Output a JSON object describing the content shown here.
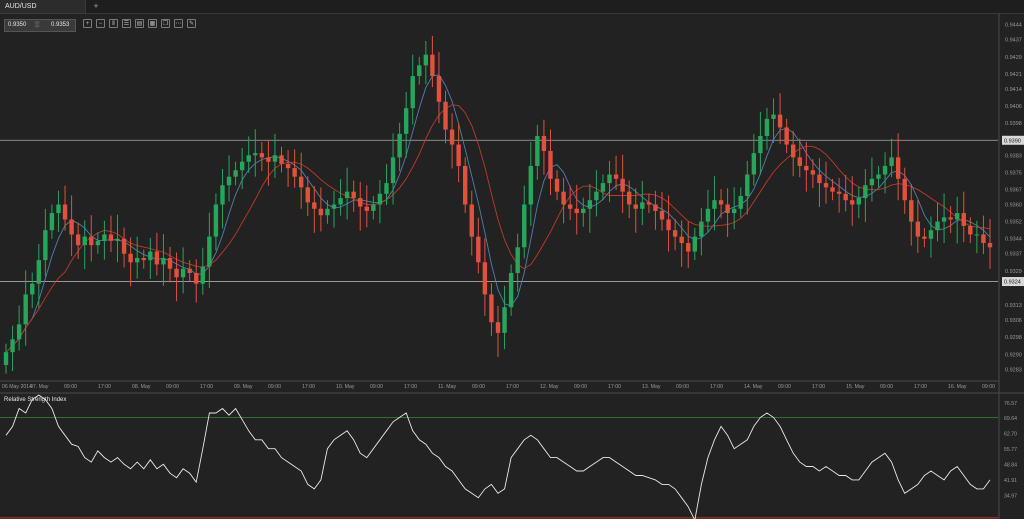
{
  "tab": {
    "label": "AUD/USD",
    "add_label": "+"
  },
  "toolbar": {
    "bid": "0.9350",
    "separator": "▒",
    "ask": "0.9353",
    "buttons": [
      {
        "name": "zoom-in-icon",
        "glyph": "+"
      },
      {
        "name": "zoom-out-icon",
        "glyph": "−"
      },
      {
        "name": "chart-type-icon",
        "glyph": "Ⅱ"
      },
      {
        "name": "indicators-icon",
        "glyph": "☰"
      },
      {
        "name": "objects-icon",
        "glyph": "▤"
      },
      {
        "name": "template-icon",
        "glyph": "▦"
      },
      {
        "name": "screenshot-icon",
        "glyph": "❐"
      },
      {
        "name": "period-icon",
        "glyph": "⋯"
      },
      {
        "name": "drawing-icon",
        "glyph": "✎"
      }
    ]
  },
  "colors": {
    "background": "#222222",
    "bull": "#26a65b",
    "bear": "#e0523d",
    "ma_fast": "#4f7fb0",
    "ma_slow": "#c0392b",
    "rsi_line": "#e8e8e8",
    "rsi_high": "#2e7d32",
    "rsi_low": "#c0392b",
    "hline": "#aaaaaa"
  },
  "chart_data": [
    {
      "type": "candlestick",
      "symbol": "AUD/USD",
      "ylim": [
        0.9278,
        0.9449
      ],
      "y_ticks": [
        "0.9444",
        "0.9437",
        "0.9429",
        "0.9421",
        "0.9414",
        "0.9406",
        "0.9398",
        "0.9390",
        "0.9383",
        "0.9375",
        "0.9367",
        "0.9360",
        "0.9352",
        "0.9344",
        "0.9337",
        "0.9329",
        "0.9324",
        "0.9313",
        "0.9306",
        "0.9298",
        "0.9290",
        "0.9283"
      ],
      "x_ticks": [
        "06 May 2014",
        "07. May",
        "09:00",
        "17:00",
        "08. May",
        "09:00",
        "17:00",
        "09. May",
        "09:00",
        "17:00",
        "10. May",
        "09:00",
        "17:00",
        "11. May",
        "09:00",
        "17:00",
        "12. May",
        "09:00",
        "17:00",
        "13. May",
        "09:00",
        "17:00",
        "14. May",
        "09:00",
        "17:00",
        "15. May",
        "09:00",
        "17:00",
        "16. May",
        "09:00"
      ],
      "horizontal_lines": [
        {
          "label": "0.9390",
          "value": 0.939
        },
        {
          "label": "0.9324",
          "value": 0.9324
        }
      ],
      "closes": [
        0.9291,
        0.9297,
        0.9304,
        0.9318,
        0.9323,
        0.9334,
        0.9348,
        0.9356,
        0.936,
        0.9353,
        0.9346,
        0.9341,
        0.9345,
        0.9341,
        0.9343,
        0.9346,
        0.9343,
        0.9344,
        0.9337,
        0.9333,
        0.9335,
        0.9334,
        0.9338,
        0.9332,
        0.9335,
        0.933,
        0.9326,
        0.933,
        0.9328,
        0.9323,
        0.9331,
        0.9345,
        0.936,
        0.9369,
        0.9373,
        0.9376,
        0.938,
        0.9383,
        0.9384,
        0.9382,
        0.938,
        0.9383,
        0.9379,
        0.9377,
        0.9373,
        0.9368,
        0.9361,
        0.9358,
        0.9355,
        0.9358,
        0.936,
        0.9363,
        0.9366,
        0.9363,
        0.9359,
        0.9357,
        0.936,
        0.9365,
        0.937,
        0.9382,
        0.9393,
        0.9405,
        0.942,
        0.9425,
        0.943,
        0.942,
        0.9408,
        0.9395,
        0.9388,
        0.9378,
        0.936,
        0.9345,
        0.9333,
        0.9318,
        0.9305,
        0.93,
        0.9312,
        0.9328,
        0.934,
        0.936,
        0.9378,
        0.9392,
        0.9385,
        0.9372,
        0.9366,
        0.936,
        0.9358,
        0.9356,
        0.9358,
        0.9362,
        0.9366,
        0.937,
        0.9374,
        0.9372,
        0.9366,
        0.936,
        0.9358,
        0.9361,
        0.936,
        0.9357,
        0.9353,
        0.9348,
        0.9345,
        0.9342,
        0.9338,
        0.9345,
        0.9352,
        0.9358,
        0.9362,
        0.936,
        0.9356,
        0.9358,
        0.9364,
        0.9374,
        0.9384,
        0.9392,
        0.94,
        0.9402,
        0.9396,
        0.9388,
        0.9382,
        0.9378,
        0.9376,
        0.9374,
        0.937,
        0.9368,
        0.9366,
        0.9365,
        0.9362,
        0.936,
        0.9363,
        0.9369,
        0.9372,
        0.9374,
        0.9378,
        0.9382,
        0.9372,
        0.9362,
        0.9352,
        0.9345,
        0.9344,
        0.9348,
        0.9352,
        0.9354,
        0.9353,
        0.9356,
        0.935,
        0.9346,
        0.9346,
        0.9342,
        0.934
      ]
    },
    {
      "type": "line",
      "title": "Relative Strength Index",
      "ylim": [
        24.5,
        80.5
      ],
      "y_ticks": [
        "76.57",
        "69.64",
        "62.70",
        "55.77",
        "48.84",
        "41.91",
        "34.97"
      ],
      "levels": [
        70,
        25
      ],
      "values": [
        62,
        66,
        74,
        72,
        78,
        80,
        78,
        74,
        66,
        62,
        58,
        57,
        52,
        50,
        55,
        52,
        50,
        52,
        49,
        47,
        50,
        47,
        51,
        47,
        49,
        45,
        43,
        47,
        45,
        41,
        56,
        72,
        72,
        74,
        71,
        74,
        69,
        64,
        60,
        60,
        56,
        56,
        52,
        50,
        48,
        46,
        40,
        38,
        42,
        56,
        60,
        62,
        64,
        60,
        54,
        52,
        56,
        60,
        64,
        68,
        70,
        72,
        64,
        60,
        58,
        54,
        52,
        48,
        46,
        42,
        38,
        36,
        34,
        38,
        40,
        36,
        38,
        52,
        56,
        60,
        62,
        60,
        56,
        52,
        52,
        50,
        48,
        46,
        46,
        48,
        50,
        52,
        52,
        50,
        48,
        46,
        44,
        44,
        43,
        42,
        40,
        40,
        38,
        34,
        30,
        24,
        40,
        52,
        60,
        66,
        62,
        56,
        58,
        60,
        66,
        70,
        72,
        70,
        66,
        60,
        54,
        50,
        48,
        48,
        46,
        48,
        46,
        44,
        44,
        42,
        42,
        46,
        50,
        52,
        54,
        50,
        42,
        36,
        38,
        40,
        44,
        46,
        44,
        42,
        46,
        48,
        44,
        40,
        38,
        38,
        42
      ]
    }
  ],
  "rsi_label": "Relative Strength Index"
}
